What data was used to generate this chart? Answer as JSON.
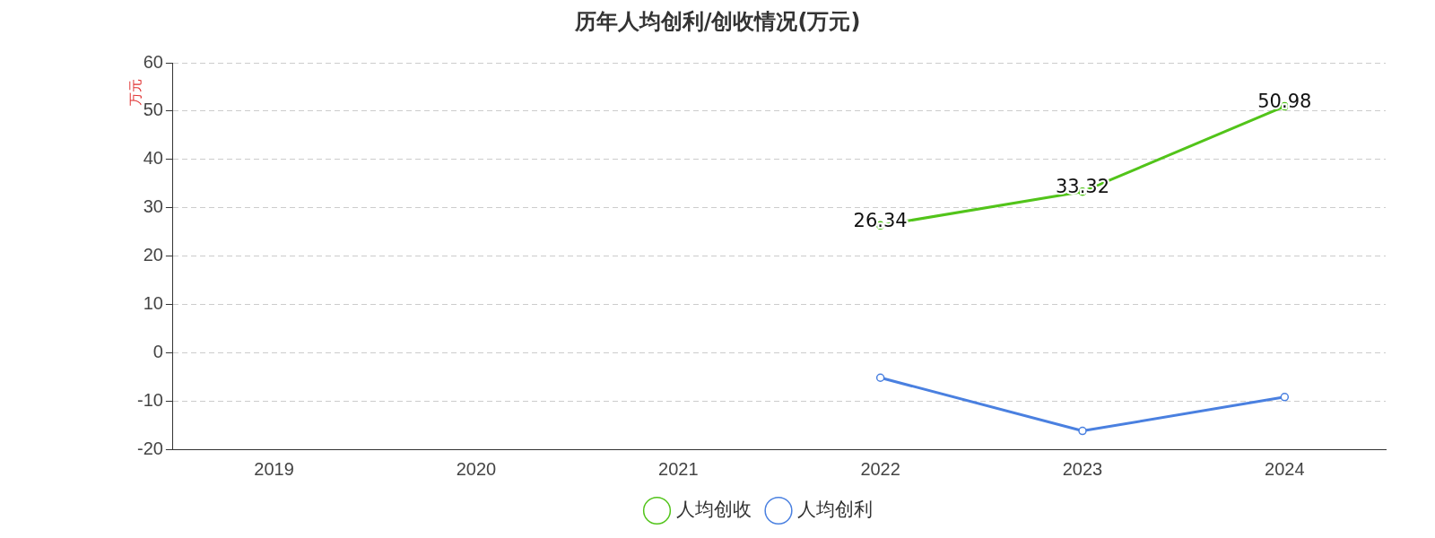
{
  "chart_data": {
    "type": "line",
    "title": "历年人均创利/创收情况(万元)",
    "ylabel": "万元",
    "categories": [
      "2019",
      "2020",
      "2021",
      "2022",
      "2023",
      "2024"
    ],
    "series": [
      {
        "name": "人均创收",
        "color": "#52c41a",
        "values": [
          null,
          null,
          null,
          26.34,
          33.32,
          50.98
        ],
        "value_labels": [
          null,
          null,
          null,
          "26.34",
          "33.32",
          "50.98"
        ]
      },
      {
        "name": "人均创利",
        "color": "#4a80e0",
        "values": [
          null,
          null,
          null,
          -5.2,
          -16.2,
          -9.2
        ]
      }
    ],
    "ylim": [
      -20,
      60
    ],
    "yticks": [
      -20,
      -10,
      0,
      10,
      20,
      30,
      40,
      50,
      60
    ],
    "grid": "y",
    "legend": "bottom",
    "marker": "circle",
    "line_style": "solid"
  }
}
